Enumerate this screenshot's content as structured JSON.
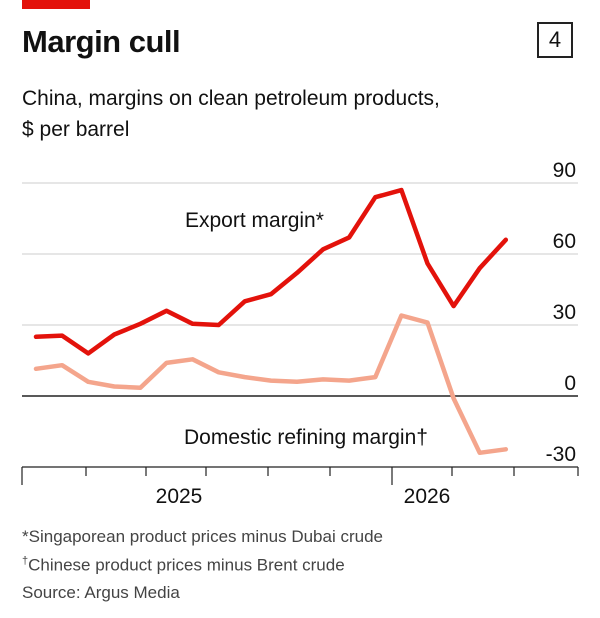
{
  "header": {
    "title": "Margin cull",
    "subtitle_line1": "China, margins on clean petroleum products,",
    "subtitle_line2": "$ per barrel",
    "chart_number": "4"
  },
  "footnotes": {
    "export_def_mark": "*",
    "export_def": "Singaporean product prices minus Dubai crude",
    "domestic_def_mark": "†",
    "domestic_def": "Chinese product prices minus Brent crude",
    "source": "Source: Argus Media"
  },
  "colors": {
    "accent": "#e3120b",
    "export_line": "#e3120b",
    "domestic_line": "#f4a58c",
    "grid": "#cccccc",
    "zero_line": "#222222"
  },
  "chart_data": {
    "type": "line",
    "title": "Margin cull",
    "subtitle": "China, margins on clean petroleum products, $ per barrel",
    "x_tick_labels": [
      "2025",
      "2026"
    ],
    "y_tick_labels": [
      "90",
      "60",
      "30",
      "0",
      "-30"
    ],
    "y_ticks": [
      90,
      60,
      30,
      0,
      -30
    ],
    "ylim": [
      -30,
      90
    ],
    "grid": true,
    "y_axis_side": "right",
    "series": [
      {
        "name": "Export margin*",
        "label": "Export margin*",
        "color": "#e3120b",
        "values": [
          25,
          25.5,
          18,
          26,
          30.5,
          36,
          30.5,
          30,
          40,
          43,
          52,
          62,
          67,
          84,
          87,
          56,
          38,
          54,
          66
        ]
      },
      {
        "name": "Domestic refining margin†",
        "label": "Domestic refining margin†",
        "color": "#f4a58c",
        "values": [
          11.5,
          13,
          6,
          4,
          3.5,
          14,
          15.5,
          10,
          8,
          6.5,
          6,
          7,
          6.5,
          8,
          34,
          31,
          -1,
          -24,
          -22.5
        ]
      }
    ]
  }
}
